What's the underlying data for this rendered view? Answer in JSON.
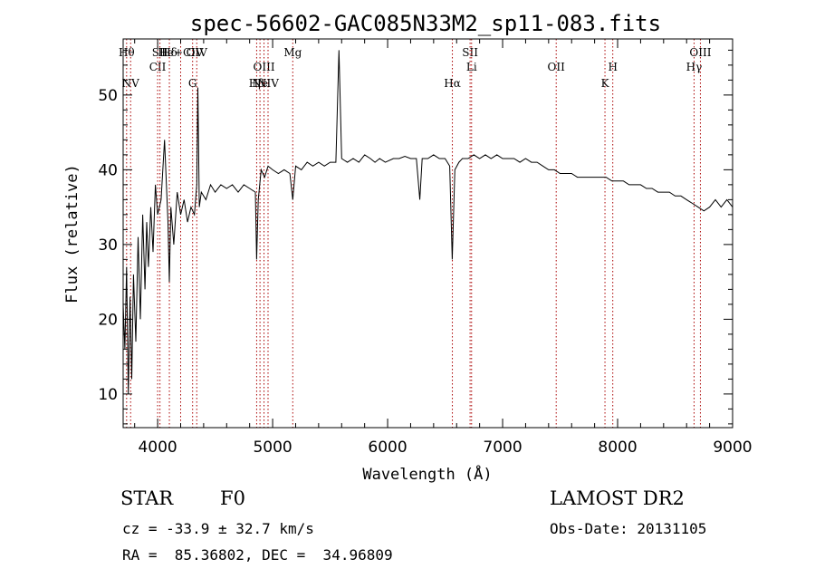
{
  "chart_data": {
    "type": "line",
    "title": "spec-56602-GAC085N33M2_sp11-083.fits",
    "xlabel": "Wavelength (Å)",
    "ylabel": "Flux (relative)",
    "xlim": [
      3700,
      9000
    ],
    "ylim": [
      5.5,
      57.5
    ],
    "x_ticks": [
      4000,
      5000,
      6000,
      7000,
      8000,
      9000
    ],
    "y_ticks": [
      10,
      20,
      30,
      40,
      50
    ],
    "grid": false,
    "line_color": "#000000",
    "marker_color": "#aa0000",
    "series": [
      {
        "x": [
          3700,
          3715,
          3730,
          3745,
          3760,
          3775,
          3790,
          3810,
          3830,
          3850,
          3870,
          3890,
          3905,
          3920,
          3940,
          3960,
          3980,
          4000,
          4030,
          4060,
          4090,
          4102,
          4115,
          4140,
          4170,
          4200,
          4230,
          4260,
          4290,
          4320,
          4340,
          4350,
          4362,
          4380,
          4420,
          4460,
          4500,
          4550,
          4600,
          4650,
          4700,
          4750,
          4800,
          4850,
          4861,
          4875,
          4900,
          4930,
          4960,
          5000,
          5050,
          5100,
          5150,
          5175,
          5200,
          5250,
          5300,
          5350,
          5400,
          5450,
          5500,
          5550,
          5577,
          5600,
          5650,
          5700,
          5750,
          5800,
          5850,
          5890,
          5930,
          5980,
          6050,
          6100,
          6150,
          6200,
          6250,
          6280,
          6300,
          6330,
          6350,
          6400,
          6450,
          6500,
          6540,
          6562,
          6585,
          6620,
          6650,
          6700,
          6750,
          6800,
          6850,
          6900,
          6950,
          7000,
          7050,
          7100,
          7150,
          7200,
          7250,
          7300,
          7350,
          7400,
          7450,
          7500,
          7550,
          7600,
          7650,
          7700,
          7750,
          7800,
          7850,
          7900,
          7950,
          8000,
          8050,
          8100,
          8150,
          8200,
          8250,
          8300,
          8350,
          8400,
          8450,
          8500,
          8550,
          8600,
          8650,
          8700,
          8750,
          8800,
          8850,
          8900,
          8950,
          9000
        ],
        "y": [
          22,
          16,
          27,
          10,
          23,
          12,
          26,
          17,
          31,
          20,
          34,
          24,
          33,
          27,
          35,
          29,
          38,
          34,
          36,
          44,
          33,
          25,
          35,
          30,
          37,
          34,
          36,
          33,
          35,
          34,
          38,
          51,
          35,
          37,
          36,
          38,
          37,
          38,
          37.5,
          38,
          37,
          38,
          37.5,
          37,
          28,
          36,
          40,
          39,
          40.5,
          40,
          39.5,
          40,
          39.5,
          36,
          40.5,
          40,
          41,
          40.5,
          41,
          40.5,
          41,
          41,
          56,
          41.5,
          41,
          41.5,
          41,
          42,
          41.5,
          41,
          41.5,
          41,
          41.5,
          41.5,
          41.8,
          41.5,
          41.5,
          36,
          41.5,
          41.5,
          41.5,
          42,
          41.5,
          41.5,
          40.5,
          28,
          40,
          41,
          41.5,
          41.5,
          42,
          41.5,
          42,
          41.5,
          42,
          41.5,
          41.5,
          41.5,
          41,
          41.5,
          41,
          41,
          40.5,
          40,
          40,
          39.5,
          39.5,
          39.5,
          39,
          39,
          39,
          39,
          39,
          39,
          38.5,
          38.5,
          38.5,
          38,
          38,
          38,
          37.5,
          37.5,
          37,
          37,
          37,
          36.5,
          36.5,
          36,
          35.5,
          35,
          34.5,
          35,
          36,
          35,
          36,
          35
        ]
      }
    ],
    "lines": [
      {
        "wave": 3730,
        "label": "Hθ",
        "row": 1
      },
      {
        "wave": 3765,
        "label": "NV",
        "row": 3
      },
      {
        "wave": 4000,
        "label": "CII",
        "row": 2
      },
      {
        "wave": 4020,
        "label": "SII",
        "row": 1
      },
      {
        "wave": 4102,
        "label": "Hδ",
        "row": 1
      },
      {
        "wave": 4200,
        "label": "He+CIV",
        "row": 1
      },
      {
        "wave": 4304,
        "label": "G",
        "row": 3
      },
      {
        "wave": 4340,
        "label": "OIV",
        "row": 1
      },
      {
        "wave": 4861,
        "label": "Hβ",
        "row": 3
      },
      {
        "wave": 4890,
        "label": "Ne",
        "row": 3
      },
      {
        "wave": 4925,
        "label": "OIII",
        "row": 2
      },
      {
        "wave": 4960,
        "label": "NIV",
        "row": 3
      },
      {
        "wave": 5175,
        "label": "Mg",
        "row": 1
      },
      {
        "wave": 6563,
        "label": "Hα",
        "row": 3
      },
      {
        "wave": 6717,
        "label": "SII",
        "row": 1
      },
      {
        "wave": 6730,
        "label": "Li",
        "row": 2
      },
      {
        "wave": 7466,
        "label": "OII",
        "row": 2
      },
      {
        "wave": 7890,
        "label": "K",
        "row": 3
      },
      {
        "wave": 7958,
        "label": "H",
        "row": 2
      },
      {
        "wave": 8665,
        "label": "Hγ",
        "row": 2
      },
      {
        "wave": 8720,
        "label": "OIII",
        "row": 1
      }
    ]
  },
  "info": {
    "class": "STAR",
    "subclass": "F0",
    "survey": "LAMOST DR2",
    "cz": "cz = -33.9 ± 32.7 km/s",
    "obsdate": "Obs-Date: 20131105",
    "coords": "RA =  85.36802, DEC =  34.96809"
  }
}
